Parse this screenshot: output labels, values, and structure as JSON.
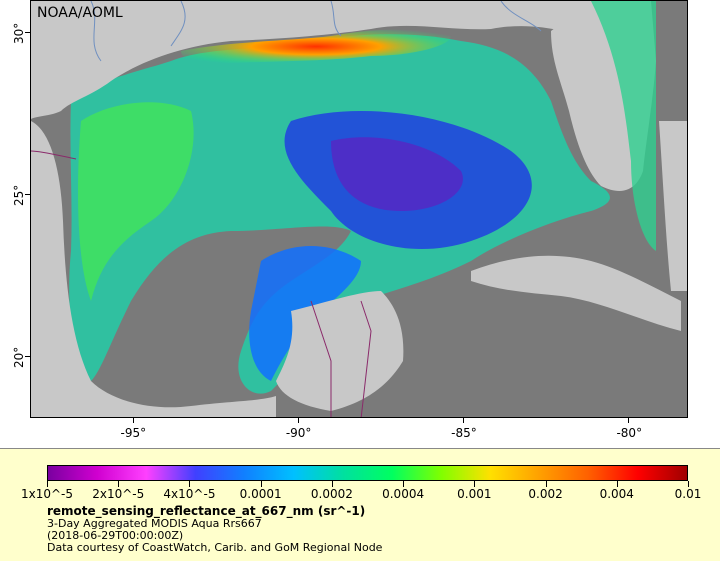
{
  "map": {
    "credit": "NOAA/AOML",
    "lat_ticks": [
      {
        "label": "30°",
        "lat": 30
      },
      {
        "label": "25°",
        "lat": 25
      },
      {
        "label": "20°",
        "lat": 20
      }
    ],
    "lon_ticks": [
      {
        "label": "-95°",
        "lon": -95
      },
      {
        "label": "-90°",
        "lon": -90
      },
      {
        "label": "-85°",
        "lon": -85
      },
      {
        "label": "-80°",
        "lon": -80
      }
    ]
  },
  "legend": {
    "colors": [
      "#7a00a0",
      "#d000d0",
      "#ff40ff",
      "#4040ff",
      "#1080ff",
      "#00c0ff",
      "#00e0a0",
      "#00ff60",
      "#80ff00",
      "#ffe000",
      "#ffa000",
      "#ff6000",
      "#ff0000",
      "#a00000"
    ],
    "ticks": [
      "1x10^-5",
      "2x10^-5",
      "4x10^-5",
      "0.0001",
      "0.0002",
      "0.0004",
      "0.001",
      "0.002",
      "0.004",
      "0.01"
    ],
    "variable": "remote_sensing_reflectance_at_667_nm (sr^-1)",
    "product": "3-Day Aggregated MODIS Aqua Rrs667",
    "date": "(2018-06-29T00:00:00Z)",
    "courtesy": "Data courtesy of CoastWatch, Carib. and GoM Regional Node"
  }
}
